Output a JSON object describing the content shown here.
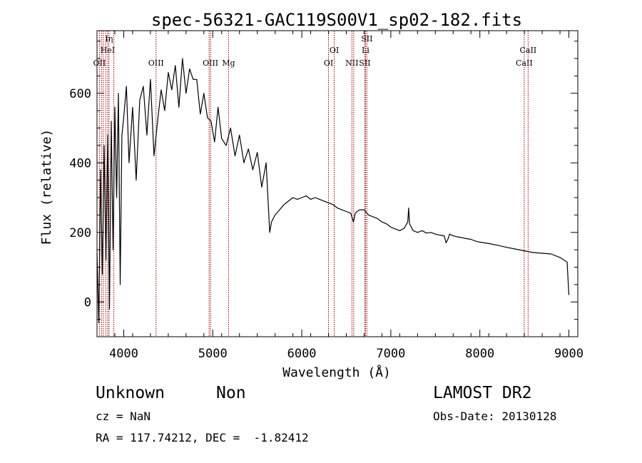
{
  "chart_data": {
    "type": "line",
    "title": "spec-56321-GAC119S00V1_sp02-182.fits",
    "xlabel": "Wavelength (Å)",
    "ylabel": "Flux (relative)",
    "xlim": [
      3700,
      9100
    ],
    "ylim": [
      -100,
      780
    ],
    "xticks": [
      4000,
      5000,
      6000,
      7000,
      8000,
      9000
    ],
    "xtick_labels": [
      "4000",
      "5000",
      "6000",
      "7000",
      "8000",
      "9000"
    ],
    "yticks": [
      0,
      200,
      400,
      600
    ],
    "ytick_labels": [
      "0",
      "200",
      "400",
      "600"
    ],
    "line_color": "#000000",
    "marker_color": "#990000",
    "series": [
      {
        "x": [
          3700,
          3720,
          3740,
          3760,
          3780,
          3800,
          3820,
          3840,
          3860,
          3880,
          3900,
          3920,
          3940,
          3960,
          3980,
          4000,
          4030,
          4060,
          4100,
          4140,
          4180,
          4220,
          4260,
          4300,
          4340,
          4380,
          4420,
          4460,
          4500,
          4540,
          4580,
          4620,
          4660,
          4700,
          4740,
          4780,
          4820,
          4860,
          4900,
          4940,
          4980,
          5020,
          5060,
          5100,
          5150,
          5200,
          5250,
          5300,
          5350,
          5400,
          5450,
          5500,
          5550,
          5600,
          5640,
          5660,
          5680,
          5700,
          5750,
          5800,
          5850,
          5900,
          5950,
          6000,
          6050,
          6100,
          6150,
          6200,
          6250,
          6300,
          6350,
          6400,
          6450,
          6500,
          6550,
          6580,
          6600,
          6620,
          6650,
          6700,
          6750,
          6800,
          6850,
          6900,
          6950,
          7000,
          7050,
          7100,
          7150,
          7190,
          7200,
          7210,
          7250,
          7300,
          7350,
          7400,
          7450,
          7500,
          7550,
          7600,
          7620,
          7640,
          7660,
          7700,
          7750,
          7800,
          7850,
          7900,
          7950,
          8000,
          8100,
          8200,
          8300,
          8400,
          8500,
          8600,
          8700,
          8800,
          8900,
          8980,
          9000
        ],
        "y": [
          140,
          -60,
          380,
          80,
          450,
          120,
          480,
          -20,
          520,
          150,
          560,
          300,
          600,
          50,
          480,
          530,
          620,
          400,
          560,
          350,
          580,
          620,
          480,
          640,
          420,
          520,
          610,
          550,
          660,
          610,
          680,
          560,
          700,
          600,
          670,
          640,
          640,
          540,
          600,
          530,
          520,
          460,
          560,
          470,
          450,
          500,
          420,
          480,
          400,
          440,
          380,
          430,
          330,
          400,
          200,
          230,
          240,
          250,
          265,
          280,
          290,
          300,
          295,
          300,
          305,
          295,
          300,
          295,
          290,
          285,
          280,
          270,
          265,
          260,
          255,
          230,
          255,
          260,
          265,
          265,
          250,
          245,
          240,
          230,
          225,
          215,
          210,
          205,
          212,
          230,
          270,
          225,
          205,
          200,
          205,
          198,
          200,
          195,
          192,
          190,
          170,
          180,
          195,
          190,
          187,
          185,
          182,
          180,
          175,
          172,
          168,
          163,
          157,
          152,
          147,
          142,
          140,
          138,
          128,
          115,
          20
        ]
      }
    ],
    "line_markers": [
      {
        "wavelength": 3727,
        "label": "OII"
      },
      {
        "wavelength": 3750,
        "label": ""
      },
      {
        "wavelength": 3770,
        "label": ""
      },
      {
        "wavelength": 3798,
        "label": ""
      },
      {
        "wavelength": 3820,
        "label": "HeI"
      },
      {
        "wavelength": 3835,
        "label": "Iη"
      },
      {
        "wavelength": 3889,
        "label": ""
      },
      {
        "wavelength": 4363,
        "label": "OIII"
      },
      {
        "wavelength": 4959,
        "label": ""
      },
      {
        "wavelength": 4975,
        "label": "OIII"
      },
      {
        "wavelength": 5177,
        "label": "Mg"
      },
      {
        "wavelength": 6300,
        "label": "OI"
      },
      {
        "wavelength": 6364,
        "label": "OI"
      },
      {
        "wavelength": 6563,
        "label": "NII"
      },
      {
        "wavelength": 6583,
        "label": ""
      },
      {
        "wavelength": 6707,
        "label": "SII"
      },
      {
        "wavelength": 6716,
        "label": "Li"
      },
      {
        "wavelength": 6731,
        "label": "SII"
      },
      {
        "wavelength": 8498,
        "label": "CaII"
      },
      {
        "wavelength": 8542,
        "label": "CaII"
      }
    ]
  },
  "info": {
    "object_class": "Unknown",
    "subclass": "Non",
    "survey": "LAMOST DR2",
    "redshift": "cz = NaN",
    "obs_date": "Obs-Date: 20130128",
    "coordinates": "RA = 117.74212, DEC =  -1.82412"
  }
}
